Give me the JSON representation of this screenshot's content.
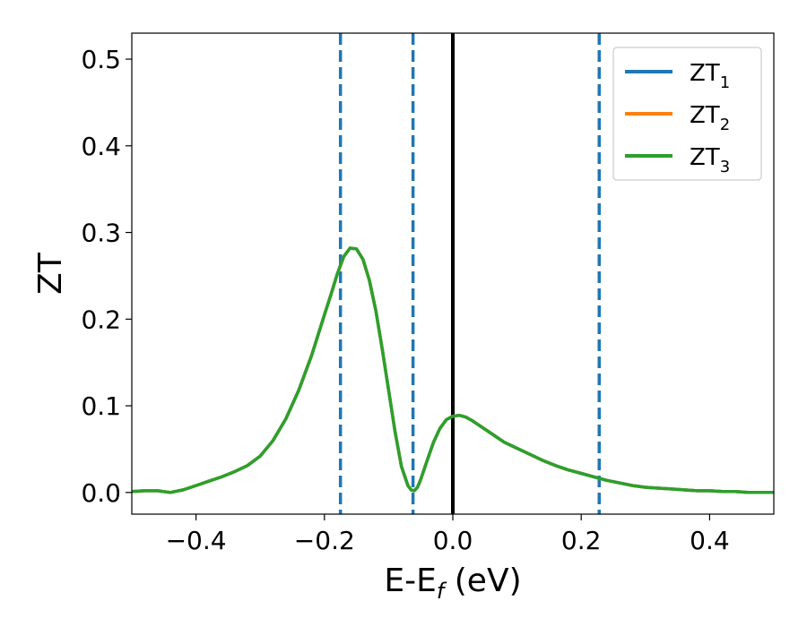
{
  "chart_data": {
    "type": "line",
    "xlabel": {
      "main": "E-E",
      "sub": "f",
      "suffix": " (eV)"
    },
    "ylabel": "ZT",
    "xlim": [
      -0.5,
      0.5
    ],
    "ylim": [
      -0.025,
      0.53
    ],
    "xticks": [
      -0.4,
      -0.2,
      0.0,
      0.2,
      0.4
    ],
    "xtick_labels": [
      "−0.4",
      "−0.2",
      "0.0",
      "0.2",
      "0.4"
    ],
    "yticks": [
      0.0,
      0.1,
      0.2,
      0.3,
      0.4,
      0.5
    ],
    "ytick_labels": [
      "0.0",
      "0.1",
      "0.2",
      "0.3",
      "0.4",
      "0.5"
    ],
    "grid": false,
    "legend_placement": "top-right",
    "series": [
      {
        "name": "ZT",
        "sub": "1",
        "color": "#1f77b4",
        "x": [
          -0.5,
          -0.48,
          -0.46,
          -0.44,
          -0.42,
          -0.4,
          -0.38,
          -0.36,
          -0.34,
          -0.32,
          -0.3,
          -0.28,
          -0.26,
          -0.24,
          -0.22,
          -0.2,
          -0.19,
          -0.18,
          -0.17,
          -0.16,
          -0.15,
          -0.14,
          -0.13,
          -0.12,
          -0.11,
          -0.1,
          -0.09,
          -0.08,
          -0.07,
          -0.065,
          -0.06,
          -0.055,
          -0.05,
          -0.04,
          -0.03,
          -0.02,
          -0.01,
          0.0,
          0.01,
          0.02,
          0.03,
          0.04,
          0.06,
          0.08,
          0.1,
          0.12,
          0.14,
          0.16,
          0.18,
          0.2,
          0.22,
          0.24,
          0.26,
          0.28,
          0.3,
          0.32,
          0.34,
          0.36,
          0.38,
          0.4,
          0.42,
          0.44,
          0.46,
          0.48,
          0.5
        ],
        "y": [
          0.001,
          0.002,
          0.002,
          0.0,
          0.003,
          0.008,
          0.013,
          0.018,
          0.024,
          0.031,
          0.042,
          0.06,
          0.085,
          0.118,
          0.158,
          0.205,
          0.228,
          0.252,
          0.272,
          0.282,
          0.281,
          0.269,
          0.245,
          0.21,
          0.166,
          0.118,
          0.07,
          0.03,
          0.008,
          0.003,
          0.002,
          0.006,
          0.015,
          0.037,
          0.058,
          0.074,
          0.084,
          0.088,
          0.089,
          0.087,
          0.083,
          0.078,
          0.068,
          0.058,
          0.051,
          0.044,
          0.037,
          0.031,
          0.026,
          0.022,
          0.018,
          0.014,
          0.011,
          0.008,
          0.006,
          0.005,
          0.004,
          0.003,
          0.002,
          0.002,
          0.001,
          0.001,
          0.0,
          0.0,
          0.0
        ]
      },
      {
        "name": "ZT",
        "sub": "2",
        "color": "#ff7f0e",
        "x": [
          -0.5,
          -0.48,
          -0.46,
          -0.44,
          -0.42,
          -0.4,
          -0.38,
          -0.36,
          -0.34,
          -0.32,
          -0.3,
          -0.28,
          -0.26,
          -0.24,
          -0.22,
          -0.2,
          -0.19,
          -0.18,
          -0.17,
          -0.16,
          -0.15,
          -0.14,
          -0.13,
          -0.12,
          -0.11,
          -0.1,
          -0.09,
          -0.08,
          -0.07,
          -0.065,
          -0.06,
          -0.055,
          -0.05,
          -0.04,
          -0.03,
          -0.02,
          -0.01,
          0.0,
          0.01,
          0.02,
          0.03,
          0.04,
          0.06,
          0.08,
          0.1,
          0.12,
          0.14,
          0.16,
          0.18,
          0.2,
          0.22,
          0.24,
          0.26,
          0.28,
          0.3,
          0.32,
          0.34,
          0.36,
          0.38,
          0.4,
          0.42,
          0.44,
          0.46,
          0.48,
          0.5
        ],
        "y": [
          0.001,
          0.002,
          0.002,
          0.0,
          0.003,
          0.008,
          0.013,
          0.018,
          0.024,
          0.031,
          0.042,
          0.06,
          0.085,
          0.118,
          0.158,
          0.205,
          0.228,
          0.252,
          0.272,
          0.282,
          0.281,
          0.269,
          0.245,
          0.21,
          0.166,
          0.118,
          0.07,
          0.03,
          0.008,
          0.003,
          0.002,
          0.006,
          0.015,
          0.037,
          0.058,
          0.074,
          0.084,
          0.088,
          0.089,
          0.087,
          0.083,
          0.078,
          0.068,
          0.058,
          0.051,
          0.044,
          0.037,
          0.031,
          0.026,
          0.022,
          0.018,
          0.014,
          0.011,
          0.008,
          0.006,
          0.005,
          0.004,
          0.003,
          0.002,
          0.002,
          0.001,
          0.001,
          0.0,
          0.0,
          0.0
        ]
      },
      {
        "name": "ZT",
        "sub": "3",
        "color": "#2ca02c",
        "x": [
          -0.5,
          -0.48,
          -0.46,
          -0.44,
          -0.42,
          -0.4,
          -0.38,
          -0.36,
          -0.34,
          -0.32,
          -0.3,
          -0.28,
          -0.26,
          -0.24,
          -0.22,
          -0.2,
          -0.19,
          -0.18,
          -0.17,
          -0.16,
          -0.15,
          -0.14,
          -0.13,
          -0.12,
          -0.11,
          -0.1,
          -0.09,
          -0.08,
          -0.07,
          -0.065,
          -0.06,
          -0.055,
          -0.05,
          -0.04,
          -0.03,
          -0.02,
          -0.01,
          0.0,
          0.01,
          0.02,
          0.03,
          0.04,
          0.06,
          0.08,
          0.1,
          0.12,
          0.14,
          0.16,
          0.18,
          0.2,
          0.22,
          0.24,
          0.26,
          0.28,
          0.3,
          0.32,
          0.34,
          0.36,
          0.38,
          0.4,
          0.42,
          0.44,
          0.46,
          0.48,
          0.5
        ],
        "y": [
          0.001,
          0.002,
          0.002,
          0.0,
          0.003,
          0.008,
          0.013,
          0.018,
          0.024,
          0.031,
          0.042,
          0.06,
          0.085,
          0.118,
          0.158,
          0.205,
          0.228,
          0.252,
          0.272,
          0.282,
          0.281,
          0.269,
          0.245,
          0.21,
          0.166,
          0.118,
          0.07,
          0.03,
          0.008,
          0.003,
          0.002,
          0.006,
          0.015,
          0.037,
          0.058,
          0.074,
          0.084,
          0.088,
          0.089,
          0.087,
          0.083,
          0.078,
          0.068,
          0.058,
          0.051,
          0.044,
          0.037,
          0.031,
          0.026,
          0.022,
          0.018,
          0.014,
          0.011,
          0.008,
          0.006,
          0.005,
          0.004,
          0.003,
          0.002,
          0.002,
          0.001,
          0.001,
          0.0,
          0.0,
          0.0
        ]
      }
    ],
    "vertical_lines": [
      {
        "x": -0.175,
        "style": "dashed",
        "color": "#1f77b4"
      },
      {
        "x": -0.062,
        "style": "dashed",
        "color": "#1f77b4"
      },
      {
        "x": 0.0,
        "style": "solid",
        "color": "#000000"
      },
      {
        "x": 0.228,
        "style": "dashed",
        "color": "#1f77b4"
      }
    ]
  }
}
